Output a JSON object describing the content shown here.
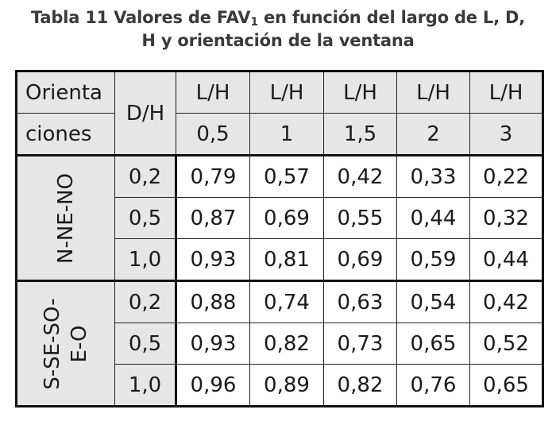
{
  "title": {
    "line1_prefix": "Tabla 11 Valores de FAV",
    "line1_sub": "1",
    "line1_suffix": " en función del largo de L, D,",
    "line2": "H y orientación de la ventana"
  },
  "header": {
    "orientaciones_line1": "Orienta",
    "orientaciones_line2": "ciones",
    "dh": "D/H",
    "lh_label": "L/H",
    "lh_values": [
      "0,5",
      "1",
      "1,5",
      "2",
      "3"
    ]
  },
  "groups": [
    {
      "orientation_line1": "N-NE-NO",
      "orientation_line2": "",
      "rows": [
        {
          "dh": "0,2",
          "values": [
            "0,79",
            "0,57",
            "0,42",
            "0,33",
            "0,22"
          ]
        },
        {
          "dh": "0,5",
          "values": [
            "0,87",
            "0,69",
            "0,55",
            "0,44",
            "0,32"
          ]
        },
        {
          "dh": "1,0",
          "values": [
            "0,93",
            "0,81",
            "0,69",
            "0,59",
            "0,44"
          ]
        }
      ]
    },
    {
      "orientation_line1": "S-SE-SO-",
      "orientation_line2": "E-O",
      "rows": [
        {
          "dh": "0,2",
          "values": [
            "0,88",
            "0,74",
            "0,63",
            "0,54",
            "0,42"
          ]
        },
        {
          "dh": "0,5",
          "values": [
            "0,93",
            "0,82",
            "0,73",
            "0,65",
            "0,52"
          ]
        },
        {
          "dh": "1,0",
          "values": [
            "0,96",
            "0,89",
            "0,82",
            "0,76",
            "0,65"
          ]
        }
      ]
    }
  ]
}
